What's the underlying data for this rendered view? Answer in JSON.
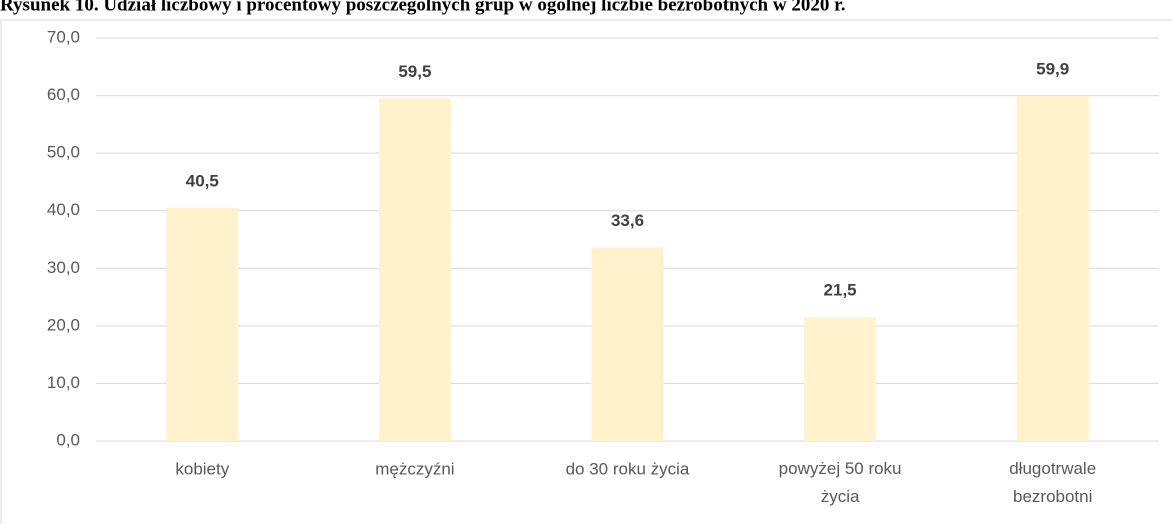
{
  "chart_data": {
    "type": "bar",
    "title": "Rysunek 10. Udział liczbowy i procentowy poszczególnych grup w ogólnej liczbie bezrobotnych w 2020 r.",
    "categories": [
      "kobiety",
      "mężczyźni",
      "do 30 roku życia",
      "powyżej 50 roku życia",
      "długotrwale bezrobotni"
    ],
    "values": [
      40.5,
      59.5,
      33.6,
      21.5,
      59.9
    ],
    "value_labels": [
      "40,5",
      "59,5",
      "33,6",
      "21,5",
      "59,9"
    ],
    "color": "#fff2cc",
    "ylim": [
      0,
      70
    ],
    "yticks": [
      {
        "value": 0,
        "label": "0,0"
      },
      {
        "value": 10,
        "label": "10,0"
      },
      {
        "value": 20,
        "label": "20,0"
      },
      {
        "value": 30,
        "label": "30,0"
      },
      {
        "value": 40,
        "label": "40,0"
      },
      {
        "value": 50,
        "label": "50,0"
      },
      {
        "value": 60,
        "label": "60,0"
      },
      {
        "value": 70,
        "label": "70,0"
      }
    ],
    "grid": true
  }
}
